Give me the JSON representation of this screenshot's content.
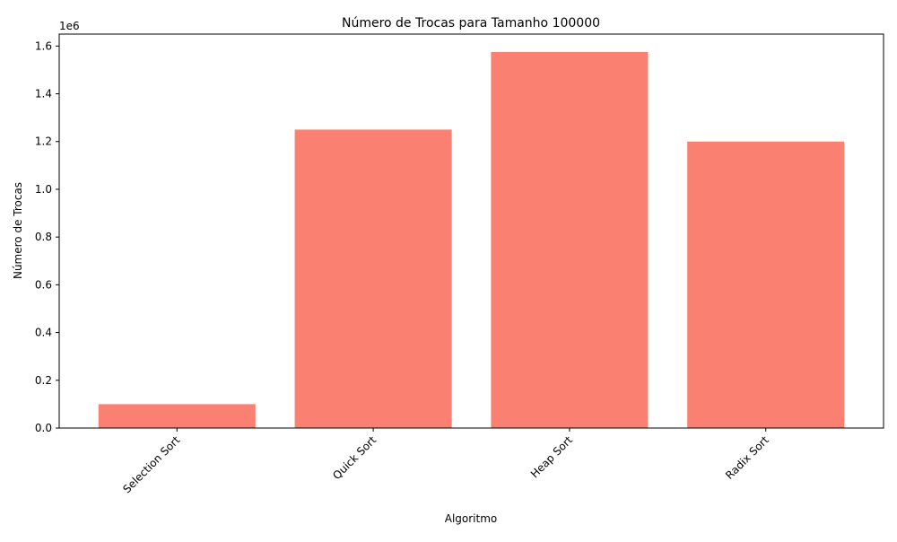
{
  "chart_data": {
    "type": "bar",
    "title": "Número de Trocas para Tamanho 100000",
    "xlabel": "Algoritmo",
    "ylabel": "Número de Trocas",
    "offset_label": "1e6",
    "categories": [
      "Selection Sort",
      "Quick Sort",
      "Heap Sort",
      "Radix Sort"
    ],
    "values": [
      100000,
      1250000,
      1575000,
      1200000
    ],
    "ylim": [
      0,
      1650000
    ],
    "yticks": [
      0,
      200000,
      400000,
      600000,
      800000,
      1000000,
      1200000,
      1400000,
      1600000
    ],
    "ytick_labels": [
      "0.0",
      "0.2",
      "0.4",
      "0.6",
      "0.8",
      "1.0",
      "1.2",
      "1.4",
      "1.6"
    ],
    "bar_color": "#fa8072",
    "grid": false,
    "legend": "none"
  }
}
